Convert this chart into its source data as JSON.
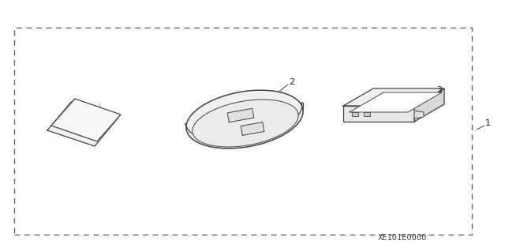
{
  "code": "XE101E0000",
  "background": "#ffffff",
  "border_color": "#666666",
  "line_color": "#444444",
  "label_1": "1",
  "label_2": "2",
  "label_3": "3",
  "fig_width": 6.4,
  "fig_height": 3.19,
  "dpi": 100
}
